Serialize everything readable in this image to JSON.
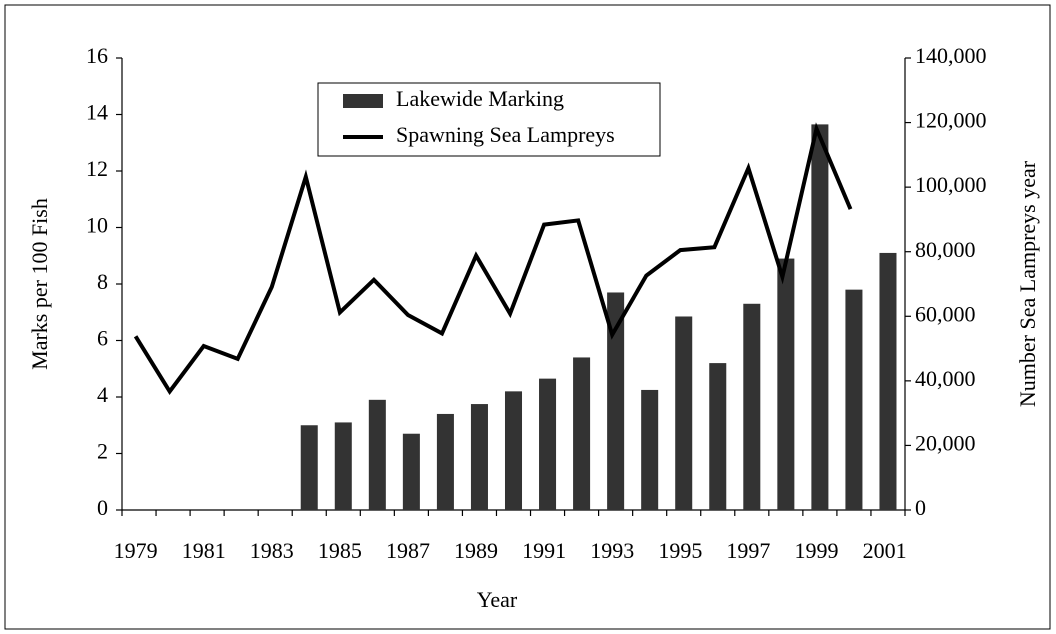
{
  "chart_data": {
    "type": "bar",
    "xlabel": "Year",
    "ylabel": "Marks per 100 Fish",
    "y2label": "Number Sea Lampreys year",
    "categories": [
      "1979",
      null,
      "1981",
      null,
      "1983",
      null,
      "1985",
      null,
      "1987",
      null,
      "1989",
      null,
      "1991",
      null,
      "1993",
      null,
      "1995",
      null,
      "1997",
      null,
      "1999",
      null,
      "2001"
    ],
    "series": [
      {
        "name": "Lakewide Marking",
        "type": "bar",
        "color": "#333333",
        "axis": "y",
        "values": [
          null,
          null,
          null,
          null,
          null,
          3.0,
          3.1,
          3.9,
          2.7,
          3.4,
          3.75,
          4.2,
          4.65,
          5.4,
          7.7,
          4.25,
          6.85,
          5.2,
          7.3,
          8.9,
          13.65,
          7.8,
          9.1
        ]
      },
      {
        "name": "Spawning Sea Lampreys",
        "type": "line",
        "color": "#000000",
        "axis": "y2",
        "values": [
          53800,
          36700,
          50800,
          46800,
          69100,
          103200,
          61200,
          71300,
          60400,
          54700,
          78800,
          60800,
          88400,
          89700,
          54300,
          72600,
          80500,
          81400,
          105900,
          72200,
          118100,
          93200,
          null
        ]
      }
    ],
    "ylim": [
      0,
      16
    ],
    "yticks": [
      0,
      2,
      4,
      6,
      8,
      10,
      12,
      14,
      16
    ],
    "y2lim": [
      0,
      140000
    ],
    "y2ticks": [
      0,
      {
        "value": 20000,
        "label": "20,000"
      },
      {
        "value": 40000,
        "label": "40,000"
      },
      {
        "value": 60000,
        "label": "60,000"
      },
      {
        "value": 80000,
        "label": "80,000"
      },
      {
        "value": 100000,
        "label": "100,000"
      },
      {
        "value": 120000,
        "label": "120,000"
      },
      {
        "value": 140000,
        "label": "140,000"
      }
    ],
    "legend": "top-center",
    "grid": false
  }
}
